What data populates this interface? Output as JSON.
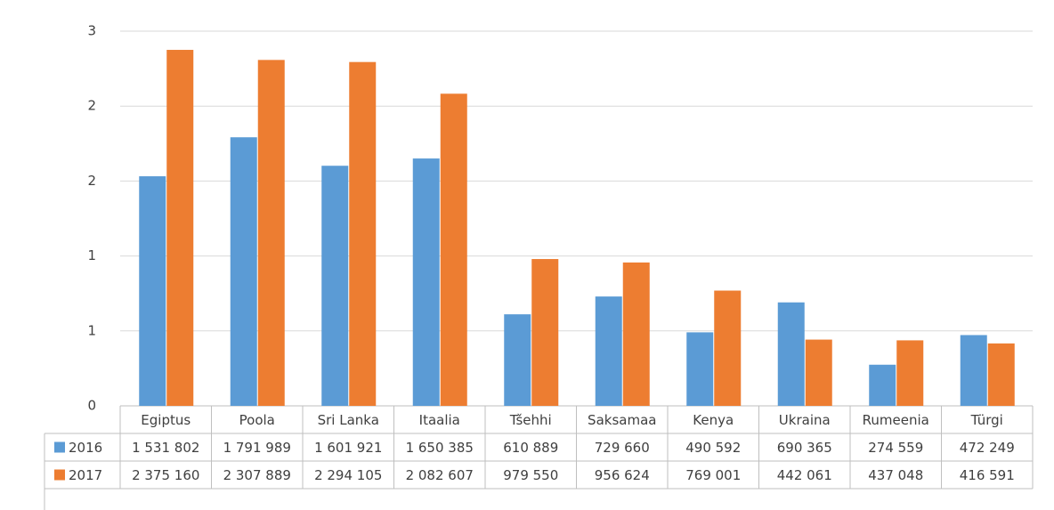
{
  "chart_data": {
    "type": "bar",
    "categories": [
      "Egiptus",
      "Poola",
      "Sri Lanka",
      "Itaalia",
      "Tšehhi",
      "Saksamaa",
      "Kenya",
      "Ukraina",
      "Rumeenia",
      "Türgi"
    ],
    "series": [
      {
        "name": "2016",
        "color": "#5b9bd5",
        "values": [
          1531802,
          1791989,
          1601921,
          1650385,
          610889,
          729660,
          490592,
          690365,
          274559,
          472249
        ],
        "value_labels": [
          "1 531 802",
          "1 791 989",
          "1 601 921",
          "1 650 385",
          "610 889",
          "729 660",
          "490 592",
          "690 365",
          "274 559",
          "472 249"
        ]
      },
      {
        "name": "2017",
        "color": "#ed7d31",
        "values": [
          2375160,
          2307889,
          2294105,
          2082607,
          979550,
          956624,
          769001,
          442061,
          437048,
          416591
        ],
        "value_labels": [
          "2 375 160",
          "2 307 889",
          "2 294 105",
          "2 082 607",
          "979 550",
          "956 624",
          "769 001",
          "442 061",
          "437 048",
          "416 591"
        ]
      }
    ],
    "ylim": [
      0,
      2500000
    ],
    "yticks": [
      0,
      {
        "value": 500000,
        "label": "1"
      },
      {
        "value": 1000000,
        "label": "1"
      },
      {
        "value": 1500000,
        "label": "2"
      },
      {
        "value": 2000000,
        "label": "2"
      },
      {
        "value": 2500000,
        "label": "3"
      }
    ],
    "grid": true
  }
}
